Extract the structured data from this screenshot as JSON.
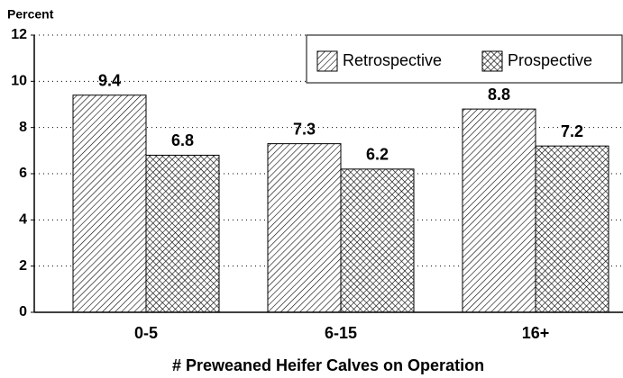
{
  "chart_data": {
    "type": "bar",
    "ylabel": "Percent",
    "xlabel": "# Preweaned Heifer Calves on Operation",
    "categories": [
      "0-5",
      "6-15",
      "16+"
    ],
    "series": [
      {
        "name": "Retrospective",
        "color": "#000000",
        "pattern": "hatch",
        "values": [
          9.4,
          7.3,
          8.8
        ]
      },
      {
        "name": "Prospective",
        "color": "#000000",
        "pattern": "crosshatch",
        "values": [
          6.8,
          6.2,
          7.2
        ]
      }
    ],
    "ylim": [
      0,
      12
    ],
    "yticks": [
      0,
      2,
      4,
      6,
      8,
      10,
      12
    ],
    "grid": true,
    "legend": "top-right"
  }
}
